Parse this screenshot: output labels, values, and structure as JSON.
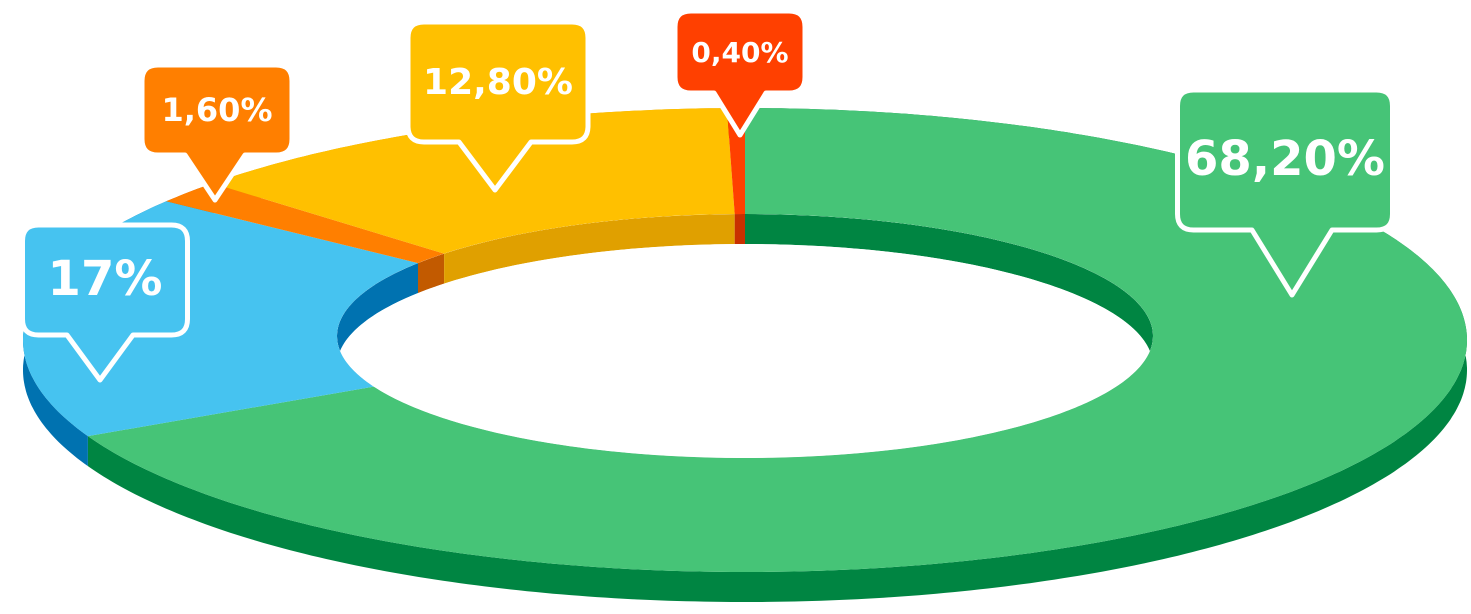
{
  "chart_data": {
    "type": "donut3d",
    "categories": [
      null,
      null,
      null,
      null,
      null
    ],
    "values": [
      68.2,
      17,
      1.6,
      12.8,
      0.4
    ],
    "value_labels": [
      "68,20%",
      "17%",
      "1,60%",
      "12,80%",
      "0,40%"
    ],
    "colors": [
      "#46c477",
      "#46c3f0",
      "#ff7f00",
      "#ffc000",
      "#ff4000"
    ],
    "side_colors": [
      "#008542",
      "#0072b0",
      "#c25a00",
      "#e0a000",
      "#c83000"
    ]
  }
}
